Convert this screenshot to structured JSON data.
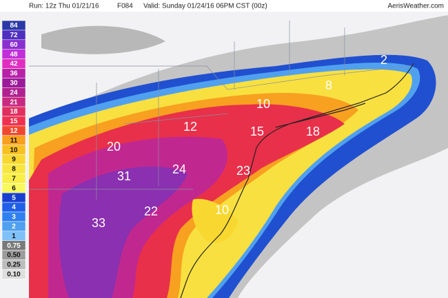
{
  "header": {
    "run": "Run: 12z Thu 01/21/16",
    "forecast_hour": "F084",
    "valid": "Valid: Sunday 01/24/16 06PM CST (00z)",
    "brand": "AerisWeather.com"
  },
  "legend": {
    "items": [
      {
        "label": "84",
        "color": "#2b3aa6"
      },
      {
        "label": "72",
        "color": "#4f2fbf"
      },
      {
        "label": "60",
        "color": "#8a2fd0"
      },
      {
        "label": "48",
        "color": "#c02fd8"
      },
      {
        "label": "42",
        "color": "#e02fc0"
      },
      {
        "label": "36",
        "color": "#b820a8"
      },
      {
        "label": "30",
        "color": "#9a1a9a"
      },
      {
        "label": "24",
        "color": "#b02090"
      },
      {
        "label": "21",
        "color": "#c82880"
      },
      {
        "label": "18",
        "color": "#e03060"
      },
      {
        "label": "15",
        "color": "#f03050"
      },
      {
        "label": "12",
        "color": "#f04830"
      },
      {
        "label": "11",
        "color": "#f8a020"
      },
      {
        "label": "10",
        "color": "#f8c020"
      },
      {
        "label": "9",
        "color": "#f8d830"
      },
      {
        "label": "8",
        "color": "#f8e640"
      },
      {
        "label": "7",
        "color": "#f8ee48"
      },
      {
        "label": "6",
        "color": "#f8f860"
      },
      {
        "label": "5",
        "color": "#1840d0"
      },
      {
        "label": "4",
        "color": "#2060e8"
      },
      {
        "label": "3",
        "color": "#3080f0"
      },
      {
        "label": "2",
        "color": "#50a0f0"
      },
      {
        "label": "1",
        "color": "#80c0f8"
      },
      {
        "label": "0.75",
        "color": "#7a7a7a"
      },
      {
        "label": "0.50",
        "color": "#9c9c9c"
      },
      {
        "label": "0.25",
        "color": "#bcbcbc"
      },
      {
        "label": "0.10",
        "color": "#dedede"
      }
    ]
  },
  "map": {
    "labels": [
      "2",
      "8",
      "10",
      "12",
      "15",
      "18",
      "20",
      "31",
      "24",
      "23",
      "22",
      "10",
      "33"
    ]
  }
}
